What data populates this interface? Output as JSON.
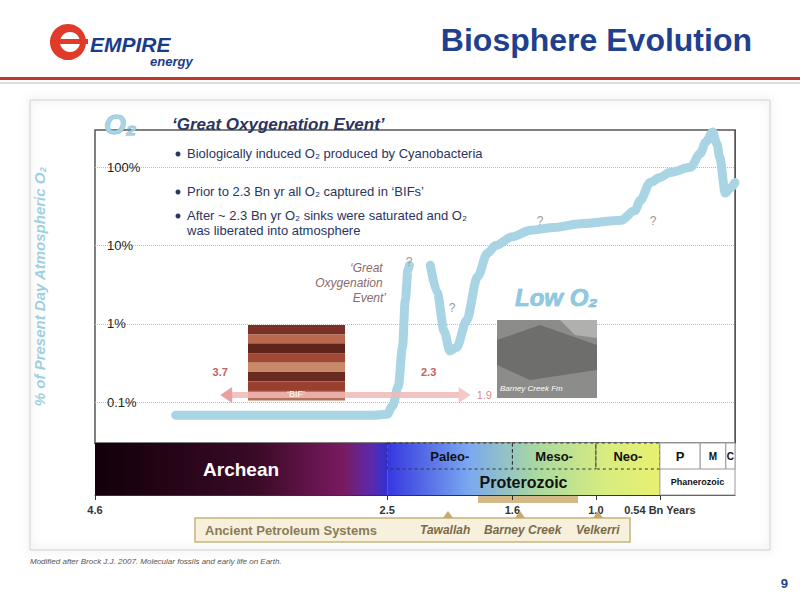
{
  "header": {
    "logo": [
      "EMPIRE",
      "energy"
    ],
    "title": "Biosphere Evolution",
    "page": "9"
  },
  "source": "Modified after Brock J.J. 2007. Molecular fossils and early life on Earth.",
  "chart_data": {
    "type": "line",
    "title": "‘Great Oxygenation Event’",
    "bullets": [
      "Biologically induced O₂ produced by Cyanobacteria",
      "Prior to 2.3 Bn yr all O₂ captured in ‘BIFs’",
      "After ~ 2.3 Bn yr O₂ sinks were saturated and O₂ was liberated into atmosphere"
    ],
    "y_label": "% of Present Day Atmospheric O₂",
    "log": "y",
    "grid": true,
    "xlim": [
      4.6,
      0
    ],
    "xticks": [
      4.6,
      2.5,
      1.6,
      {
        "value": 1,
        "label": "1.0"
      },
      {
        "value": 0.54,
        "label": "0.54 Bn Years"
      }
    ],
    "ylim": [
      0.03,
      300
    ],
    "yticks": [
      {
        "value": 0.1,
        "label": "0.1%"
      },
      {
        "value": 1,
        "label": "1%"
      },
      {
        "value": 10,
        "label": "10%"
      },
      {
        "value": 100,
        "label": "100%"
      }
    ],
    "x": [
      4.02,
      3.2,
      2.6,
      2.5,
      2.46,
      2.42,
      2.39,
      2.37,
      2.35,
      2.34,
      2.27,
      2.19,
      2.14,
      2.09,
      2.05,
      2.0,
      1.93,
      1.85,
      1.78,
      1.72,
      1.6,
      1.47,
      1.3,
      1.11,
      0.82,
      0.72,
      0.68,
      0.61,
      0.54,
      0.47,
      0.32,
      0.25,
      0.21,
      0.16,
      0.13,
      0.11,
      0.07,
      0.03,
      0
    ],
    "series": [
      {
        "name": "O₂",
        "color": "#a8d4e4",
        "values": [
          0.068,
          0.068,
          0.068,
          0.07,
          0.09,
          0.16,
          0.5,
          2,
          4.9,
          5.6,
          null,
          5.6,
          2.5,
          0.8,
          0.45,
          0.5,
          1.1,
          4,
          8,
          10,
          13,
          15.7,
          17,
          19,
          21,
          28,
          38,
          64,
          74,
          86,
          100,
          150,
          211,
          283,
          200,
          135,
          47,
          55,
          64
        ]
      }
    ],
    "annotations": {
      "event": "‘Great Oxygenation Event’",
      "low": "Low O₂",
      "questions": [
        "?",
        "?",
        "?",
        "?"
      ]
    },
    "bif": {
      "label": "‘BIF’",
      "from": 3.7,
      "mid": 2.3,
      "to": 1.9
    },
    "photo_caption": "Barney Creek Fm",
    "timescale": {
      "eons": [
        {
          "name": "Archean",
          "from": 4.6,
          "to": 2.5
        },
        {
          "name": "Proterozoic",
          "from": 2.5,
          "to": 0.54
        },
        {
          "name": "Phanerozoic",
          "from": 0.54,
          "to": 0
        }
      ],
      "eras": [
        {
          "name": "Paleo-",
          "from": 2.5,
          "to": 1.6
        },
        {
          "name": "Meso-",
          "from": 1.6,
          "to": 1.0
        },
        {
          "name": "Neo-",
          "from": 1.0,
          "to": 0.54
        },
        {
          "name": "P",
          "from": 0.54,
          "to": 0.25
        },
        {
          "name": "M",
          "from": 0.25,
          "to": 0.066
        },
        {
          "name": "C",
          "from": 0.066,
          "to": 0
        }
      ]
    },
    "petroleum": {
      "title": "Ancient Petroleum Systems",
      "systems": [
        "Tawallah",
        "Barney Creek",
        "Velkerri"
      ]
    }
  }
}
